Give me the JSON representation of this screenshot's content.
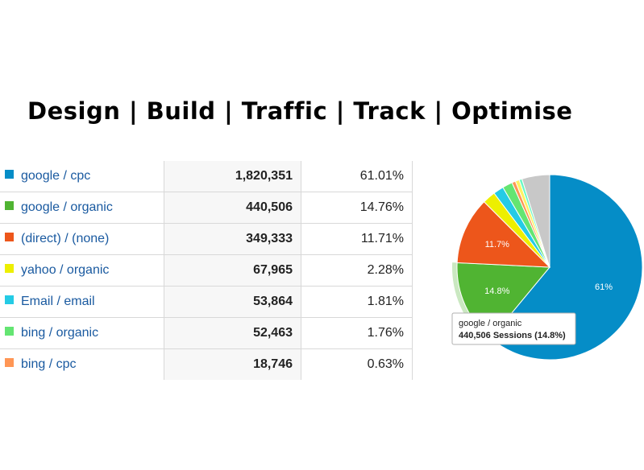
{
  "header": {
    "title": "Design | Build | Traffic | Track | Optimise"
  },
  "table": {
    "rows": [
      {
        "source": "google / cpc",
        "sessions": "1,820,351",
        "percent": "61.01%",
        "color": "#058dc7"
      },
      {
        "source": "google / organic",
        "sessions": "440,506",
        "percent": "14.76%",
        "color": "#50b432"
      },
      {
        "source": "(direct) / (none)",
        "sessions": "349,333",
        "percent": "11.71%",
        "color": "#ed561b"
      },
      {
        "source": "yahoo / organic",
        "sessions": "67,965",
        "percent": "2.28%",
        "color": "#edef00"
      },
      {
        "source": "Email / email",
        "sessions": "53,864",
        "percent": "1.81%",
        "color": "#24cbe5"
      },
      {
        "source": "bing / organic",
        "sessions": "52,463",
        "percent": "1.76%",
        "color": "#64e572"
      },
      {
        "source": "bing / cpc",
        "sessions": "18,746",
        "percent": "0.63%",
        "color": "#ff9655"
      }
    ]
  },
  "chart_data": {
    "type": "pie",
    "slices": [
      {
        "name": "google / cpc",
        "value": 61.01,
        "color": "#058dc7",
        "label": "61%"
      },
      {
        "name": "google / organic",
        "value": 14.76,
        "color": "#50b432",
        "label": "14.8%"
      },
      {
        "name": "(direct) / (none)",
        "value": 11.71,
        "color": "#ed561b",
        "label": "11.7%"
      },
      {
        "name": "yahoo / organic",
        "value": 2.28,
        "color": "#edef00",
        "label": ""
      },
      {
        "name": "Email / email",
        "value": 1.81,
        "color": "#24cbe5",
        "label": ""
      },
      {
        "name": "bing / organic",
        "value": 1.76,
        "color": "#64e572",
        "label": ""
      },
      {
        "name": "bing / cpc",
        "value": 0.63,
        "color": "#ff9655",
        "label": ""
      },
      {
        "name": "",
        "value": 0.7,
        "color": "#fff263",
        "label": ""
      },
      {
        "name": "",
        "value": 0.5,
        "color": "#6af9c4",
        "label": ""
      },
      {
        "name": "",
        "value": 4.84,
        "color": "#c8c8c8",
        "label": ""
      }
    ],
    "highlighted": "google / organic",
    "tooltip": {
      "title": "google / organic",
      "body": "440,506 Sessions (14.8%)"
    }
  }
}
